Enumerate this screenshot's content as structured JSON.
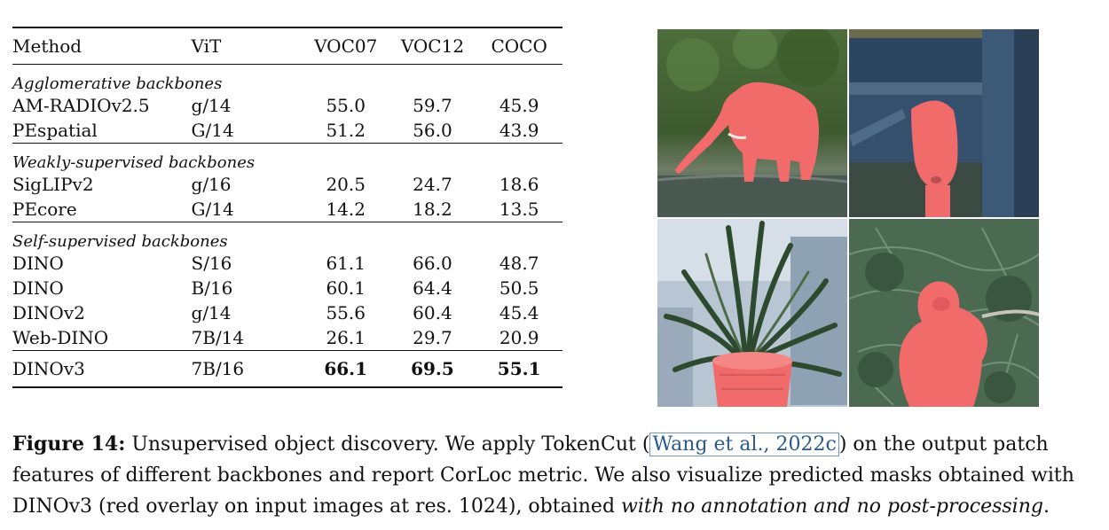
{
  "table": {
    "headers": [
      "Method",
      "ViT",
      "VOC07",
      "VOC12",
      "COCO"
    ],
    "groups": [
      {
        "title": "Agglomerative backbones",
        "rows": [
          {
            "method": "AM-RADIOv2.5",
            "vit": "g/14",
            "voc07": "55.0",
            "voc12": "59.7",
            "coco": "45.9"
          },
          {
            "method": "PEspatial",
            "vit": "G/14",
            "voc07": "51.2",
            "voc12": "56.0",
            "coco": "43.9"
          }
        ]
      },
      {
        "title": "Weakly-supervised backbones",
        "rows": [
          {
            "method": "SigLIPv2",
            "vit": "g/16",
            "voc07": "20.5",
            "voc12": "24.7",
            "coco": "18.6"
          },
          {
            "method": "PEcore",
            "vit": "G/14",
            "voc07": "14.2",
            "voc12": "18.2",
            "coco": "13.5"
          }
        ]
      },
      {
        "title": "Self-supervised backbones",
        "rows": [
          {
            "method": "DINO",
            "vit": "S/16",
            "voc07": "61.1",
            "voc12": "66.0",
            "coco": "48.7"
          },
          {
            "method": "DINO",
            "vit": "B/16",
            "voc07": "60.1",
            "voc12": "64.4",
            "coco": "50.5"
          },
          {
            "method": "DINOv2",
            "vit": "g/14",
            "voc07": "55.6",
            "voc12": "60.4",
            "coco": "45.4"
          },
          {
            "method": "Web-DINO",
            "vit": "7B/14",
            "voc07": "26.1",
            "voc12": "29.7",
            "coco": "20.9"
          }
        ]
      }
    ],
    "final_row": {
      "method": "DINOv3",
      "vit": "7B/16",
      "voc07": "66.1",
      "voc12": "69.5",
      "coco": "55.1"
    }
  },
  "images": [
    {
      "subject": "elephant",
      "icon": "elephant-mask-image"
    },
    {
      "subject": "goat",
      "icon": "goat-mask-image"
    },
    {
      "subject": "plant",
      "icon": "potted-plant-mask-image"
    },
    {
      "subject": "monkey",
      "icon": "monkey-mask-image"
    }
  ],
  "colors": {
    "mask_overlay": "#f26b6b",
    "citation_link": "#2a5a8c"
  },
  "caption": {
    "label": "Figure 14:",
    "text1": " Unsupervised object discovery. We apply TokenCut (",
    "citation": "Wang et al., 2022c",
    "text2": ") on the output patch features of different backbones and report CorLoc metric. We also visualize predicted masks obtained with DINOv3 (red overlay on input images at res. 1024), obtained ",
    "italic": "with no annotation and no post-processing",
    "end": "."
  }
}
